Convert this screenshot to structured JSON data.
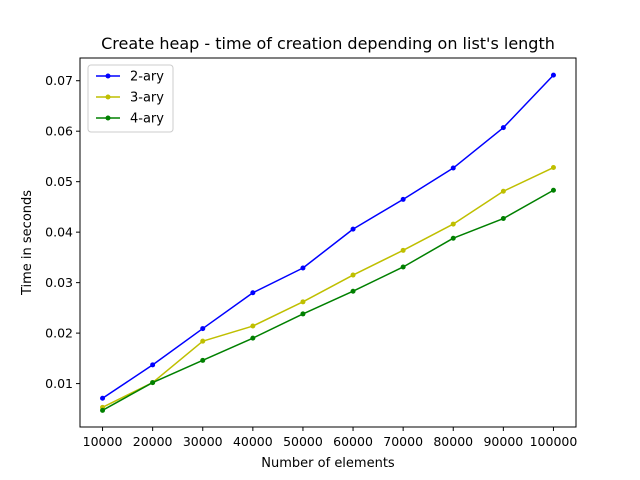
{
  "chart_data": {
    "type": "line",
    "title": "Create heap - time of creation depending on list's length",
    "xlabel": "Number of elements",
    "ylabel": "Time in seconds",
    "x": [
      10000,
      20000,
      30000,
      40000,
      50000,
      60000,
      70000,
      80000,
      90000,
      100000
    ],
    "x_tick_labels": [
      "10000",
      "20000",
      "30000",
      "40000",
      "50000",
      "60000",
      "70000",
      "80000",
      "90000",
      "100000"
    ],
    "y_ticks": [
      0.01,
      0.02,
      0.03,
      0.04,
      0.05,
      0.06,
      0.07
    ],
    "y_tick_labels": [
      "0.01",
      "0.02",
      "0.03",
      "0.04",
      "0.05",
      "0.06",
      "0.07"
    ],
    "xlim": [
      5500,
      104500
    ],
    "ylim": [
      0.0014,
      0.0745
    ],
    "grid": false,
    "legend_position": "top-left",
    "series": [
      {
        "name": "2-ary",
        "color": "#0000ff",
        "values": [
          0.0071,
          0.0137,
          0.0209,
          0.028,
          0.0329,
          0.0406,
          0.0465,
          0.0527,
          0.0607,
          0.0711
        ]
      },
      {
        "name": "3-ary",
        "color": "#bfbf00",
        "values": [
          0.0053,
          0.0102,
          0.0184,
          0.0214,
          0.0262,
          0.0315,
          0.0364,
          0.0416,
          0.0481,
          0.0528
        ]
      },
      {
        "name": "4-ary",
        "color": "#008000",
        "values": [
          0.0047,
          0.0102,
          0.0146,
          0.019,
          0.0238,
          0.0283,
          0.0331,
          0.0388,
          0.0427,
          0.0483
        ]
      }
    ]
  }
}
